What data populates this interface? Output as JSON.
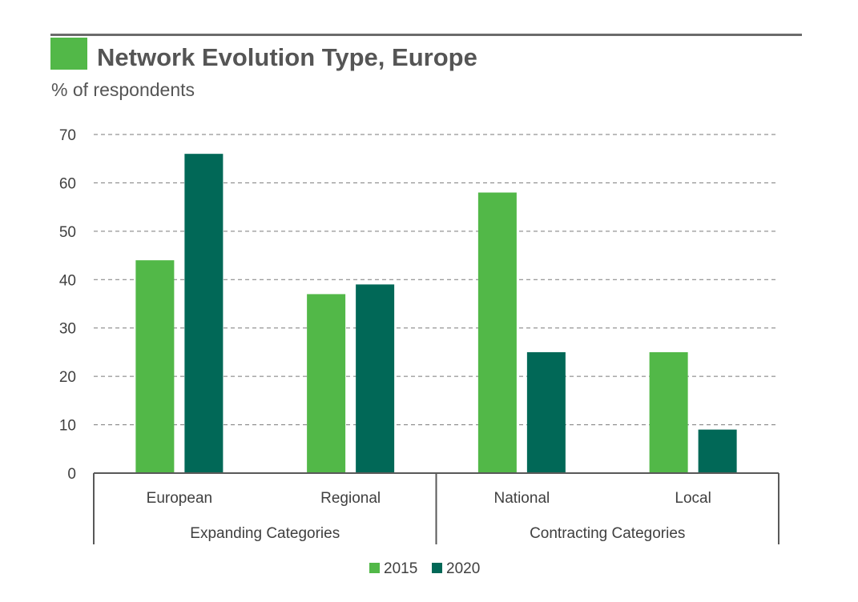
{
  "colors": {
    "accent": "#52b848",
    "series_2015": "#52b848",
    "series_2020": "#016857",
    "rule": "#6b6b6b"
  },
  "header": {
    "title": "Network Evolution Type, Europe",
    "subtitle": "% of respondents"
  },
  "chart_data": {
    "type": "bar",
    "title": "Network Evolution Type, Europe",
    "subtitle": "% of respondents",
    "categories": [
      "European",
      "Regional",
      "National",
      "Local"
    ],
    "groups": [
      {
        "label": "Expanding Categories",
        "categories": [
          "European",
          "Regional"
        ]
      },
      {
        "label": "Contracting Categories",
        "categories": [
          "National",
          "Local"
        ]
      }
    ],
    "series": [
      {
        "name": "2015",
        "values": [
          44,
          37,
          58,
          25
        ]
      },
      {
        "name": "2020",
        "values": [
          66,
          39,
          25,
          9
        ]
      }
    ],
    "ylim": [
      0,
      70
    ],
    "yticks": [
      0,
      10,
      20,
      30,
      40,
      50,
      60,
      70
    ],
    "grid": true,
    "legend": "bottom-center"
  }
}
